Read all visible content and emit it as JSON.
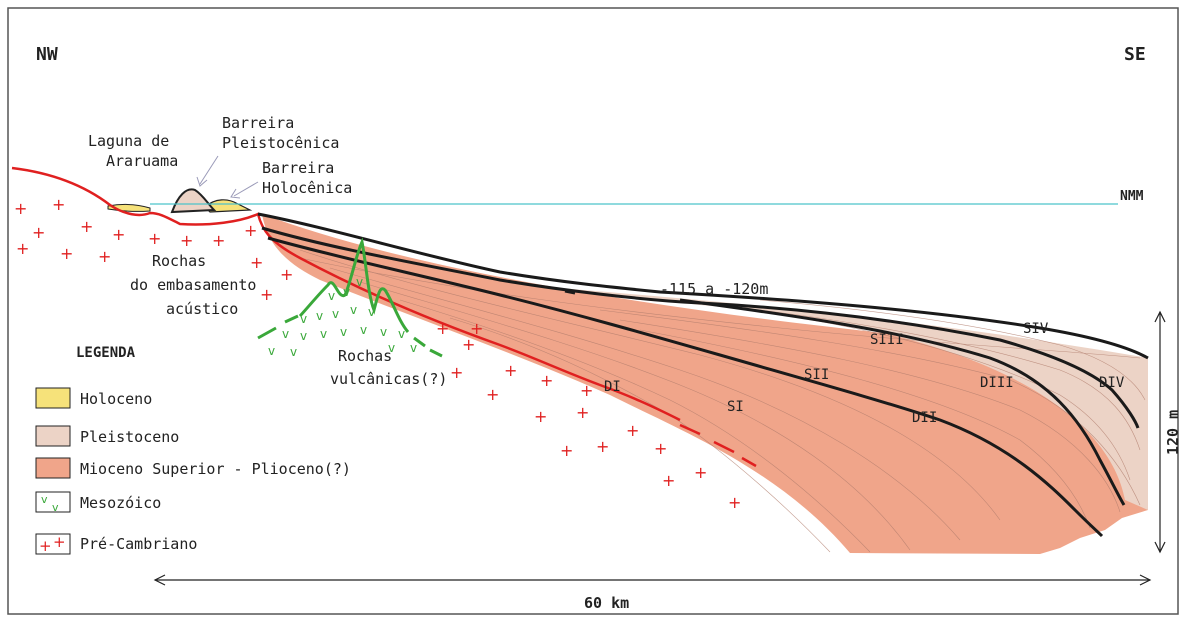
{
  "orientation": {
    "left": "NW",
    "right": "SE"
  },
  "sea_level_label": "NMM",
  "place_labels": {
    "laguna_line1": "Laguna de",
    "laguna_line2": "Araruama",
    "pleist_line1": "Barreira",
    "pleist_line2": "Pleistocênica",
    "holo_line1": "Barreira",
    "holo_line2": "Holocênica"
  },
  "rock_labels": {
    "basement_line1": "Rochas",
    "basement_line2": "do embasamento",
    "basement_line3": "acústico",
    "volcanic_line1": "Rochas",
    "volcanic_line2": "vulcânicas(?)"
  },
  "depth_label": "-115 a -120m",
  "sequence_labels": [
    "SI",
    "SII",
    "SIII",
    "SIV"
  ],
  "discontinuity_labels": [
    "DI",
    "DII",
    "DIII",
    "DIV"
  ],
  "scale": {
    "horizontal": "60 km",
    "vertical": "120 m"
  },
  "legend": {
    "title": "LEGENDA",
    "items": [
      {
        "label": "Holoceno",
        "swatch": "#f6e27a"
      },
      {
        "label": "Pleistoceno",
        "swatch": "#ecd3c6"
      },
      {
        "label": "Mioceno Superior - Plioceno(?)",
        "swatch": "#f0a58a"
      },
      {
        "label": "Mesozóico",
        "swatch": "v-pattern"
      },
      {
        "label": "Pré-Cambriano",
        "swatch": "plus-pattern"
      }
    ]
  },
  "colors": {
    "holocene": "#f6e27a",
    "pleistocene": "#ecd3c6",
    "miocene": "#f0a58a",
    "basement_line": "#e02020",
    "volcanic": "#3aa83a",
    "sea": "#4cc3c9"
  }
}
